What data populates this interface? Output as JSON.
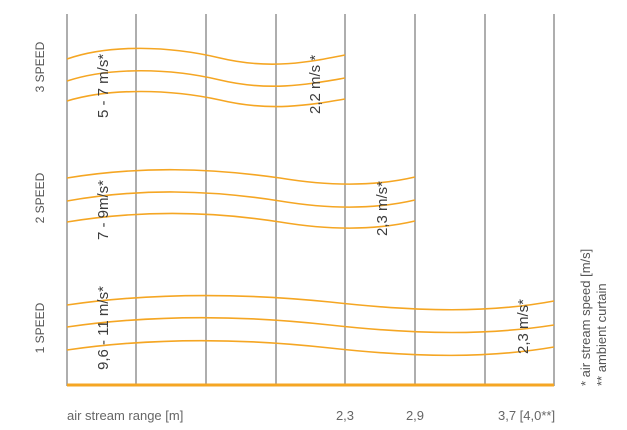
{
  "colors": {
    "stream": "#f5a623",
    "grid": "#9a9a9a",
    "text": "#555555"
  },
  "speeds": [
    {
      "label": "3 SPEED",
      "range_label": "5 - 7 m/s*",
      "end_label": "2,2 m/s *"
    },
    {
      "label": "2 SPEED",
      "range_label": "7 - 9m/s*",
      "end_label": "2,3 m/s*"
    },
    {
      "label": "1 SPEED",
      "range_label": "9,6 - 11 m/s*",
      "end_label": "2,3 m/s*"
    }
  ],
  "axis": {
    "label": "air stream range [m]",
    "ticks": [
      "2,3",
      "2,9",
      "3,7 [4,0**]"
    ]
  },
  "notes": {
    "speed_unit": "* air stream speed [m/s]",
    "ambient": "** ambient curtain"
  }
}
